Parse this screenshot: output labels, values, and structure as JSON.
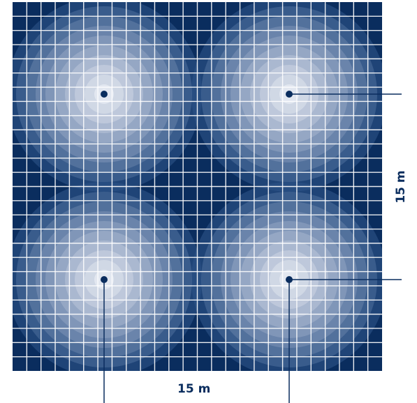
{
  "dimensions": {
    "width_label": "15 m",
    "height_label": "15 m"
  },
  "colors": {
    "background_dark": "#0a2d5e",
    "grid_line": "#ffffff",
    "center_light": "#eef1f7",
    "marker": "#0a2d5e",
    "leader_line": "#0a2d5e"
  },
  "light_zones": {
    "count": 4,
    "layout": "2x2",
    "contour_rings": 10
  },
  "grid": {
    "cells_per_side": 26
  }
}
